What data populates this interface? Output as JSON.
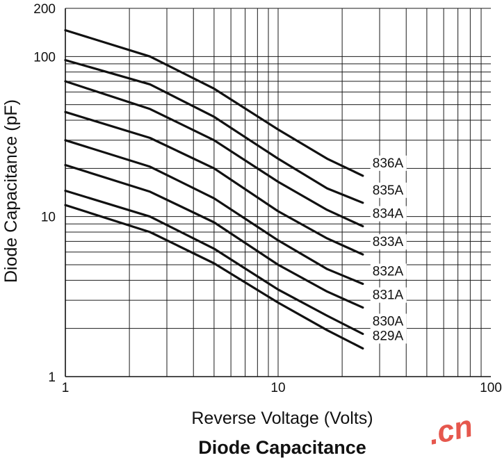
{
  "chart_data": {
    "type": "line",
    "title": "Diode Capacitance",
    "xlabel": "Reverse Voltage (Volts)",
    "ylabel": "Diode Capacitance (pF)",
    "x_scale": "log",
    "y_scale": "log",
    "xlim": [
      1,
      100
    ],
    "ylim": [
      1,
      200
    ],
    "x_tick_labels": [
      "1",
      "10",
      "100"
    ],
    "y_tick_labels": [
      "1",
      "10",
      "100",
      "200"
    ],
    "grid": true,
    "series": [
      {
        "name": "836A",
        "x": [
          1,
          2.5,
          5,
          10,
          17,
          25
        ],
        "y": [
          146,
          100,
          63,
          35,
          23,
          18
        ]
      },
      {
        "name": "835A",
        "x": [
          1,
          2.5,
          5,
          10,
          17,
          25
        ],
        "y": [
          95,
          67,
          42,
          23,
          15,
          12.2
        ]
      },
      {
        "name": "834A",
        "x": [
          1,
          2.5,
          5,
          10,
          17,
          25
        ],
        "y": [
          70,
          47,
          30,
          16.5,
          11,
          8.7
        ]
      },
      {
        "name": "833A",
        "x": [
          1,
          2.5,
          5,
          10,
          17,
          25
        ],
        "y": [
          45,
          31,
          20,
          10.8,
          7.3,
          5.8
        ]
      },
      {
        "name": "832A",
        "x": [
          1,
          2.5,
          5,
          10,
          17,
          25
        ],
        "y": [
          30,
          20.5,
          13,
          7.1,
          4.7,
          3.8
        ]
      },
      {
        "name": "831A",
        "x": [
          1,
          2.5,
          5,
          10,
          17,
          25
        ],
        "y": [
          21,
          14.3,
          9.2,
          5,
          3.4,
          2.7
        ]
      },
      {
        "name": "830A",
        "x": [
          1,
          2.5,
          5,
          10,
          17,
          25
        ],
        "y": [
          14.5,
          10,
          6.3,
          3.5,
          2.4,
          1.85
        ]
      },
      {
        "name": "829A",
        "x": [
          1,
          2.5,
          5,
          10,
          17,
          25
        ],
        "y": [
          11.8,
          8,
          5.1,
          2.9,
          1.95,
          1.5
        ]
      }
    ]
  },
  "colors": {
    "lines": "#111111",
    "grid": "#1a1a1a",
    "watermark": "#e23a2e"
  },
  "watermark": {
    "text": ".cn"
  }
}
